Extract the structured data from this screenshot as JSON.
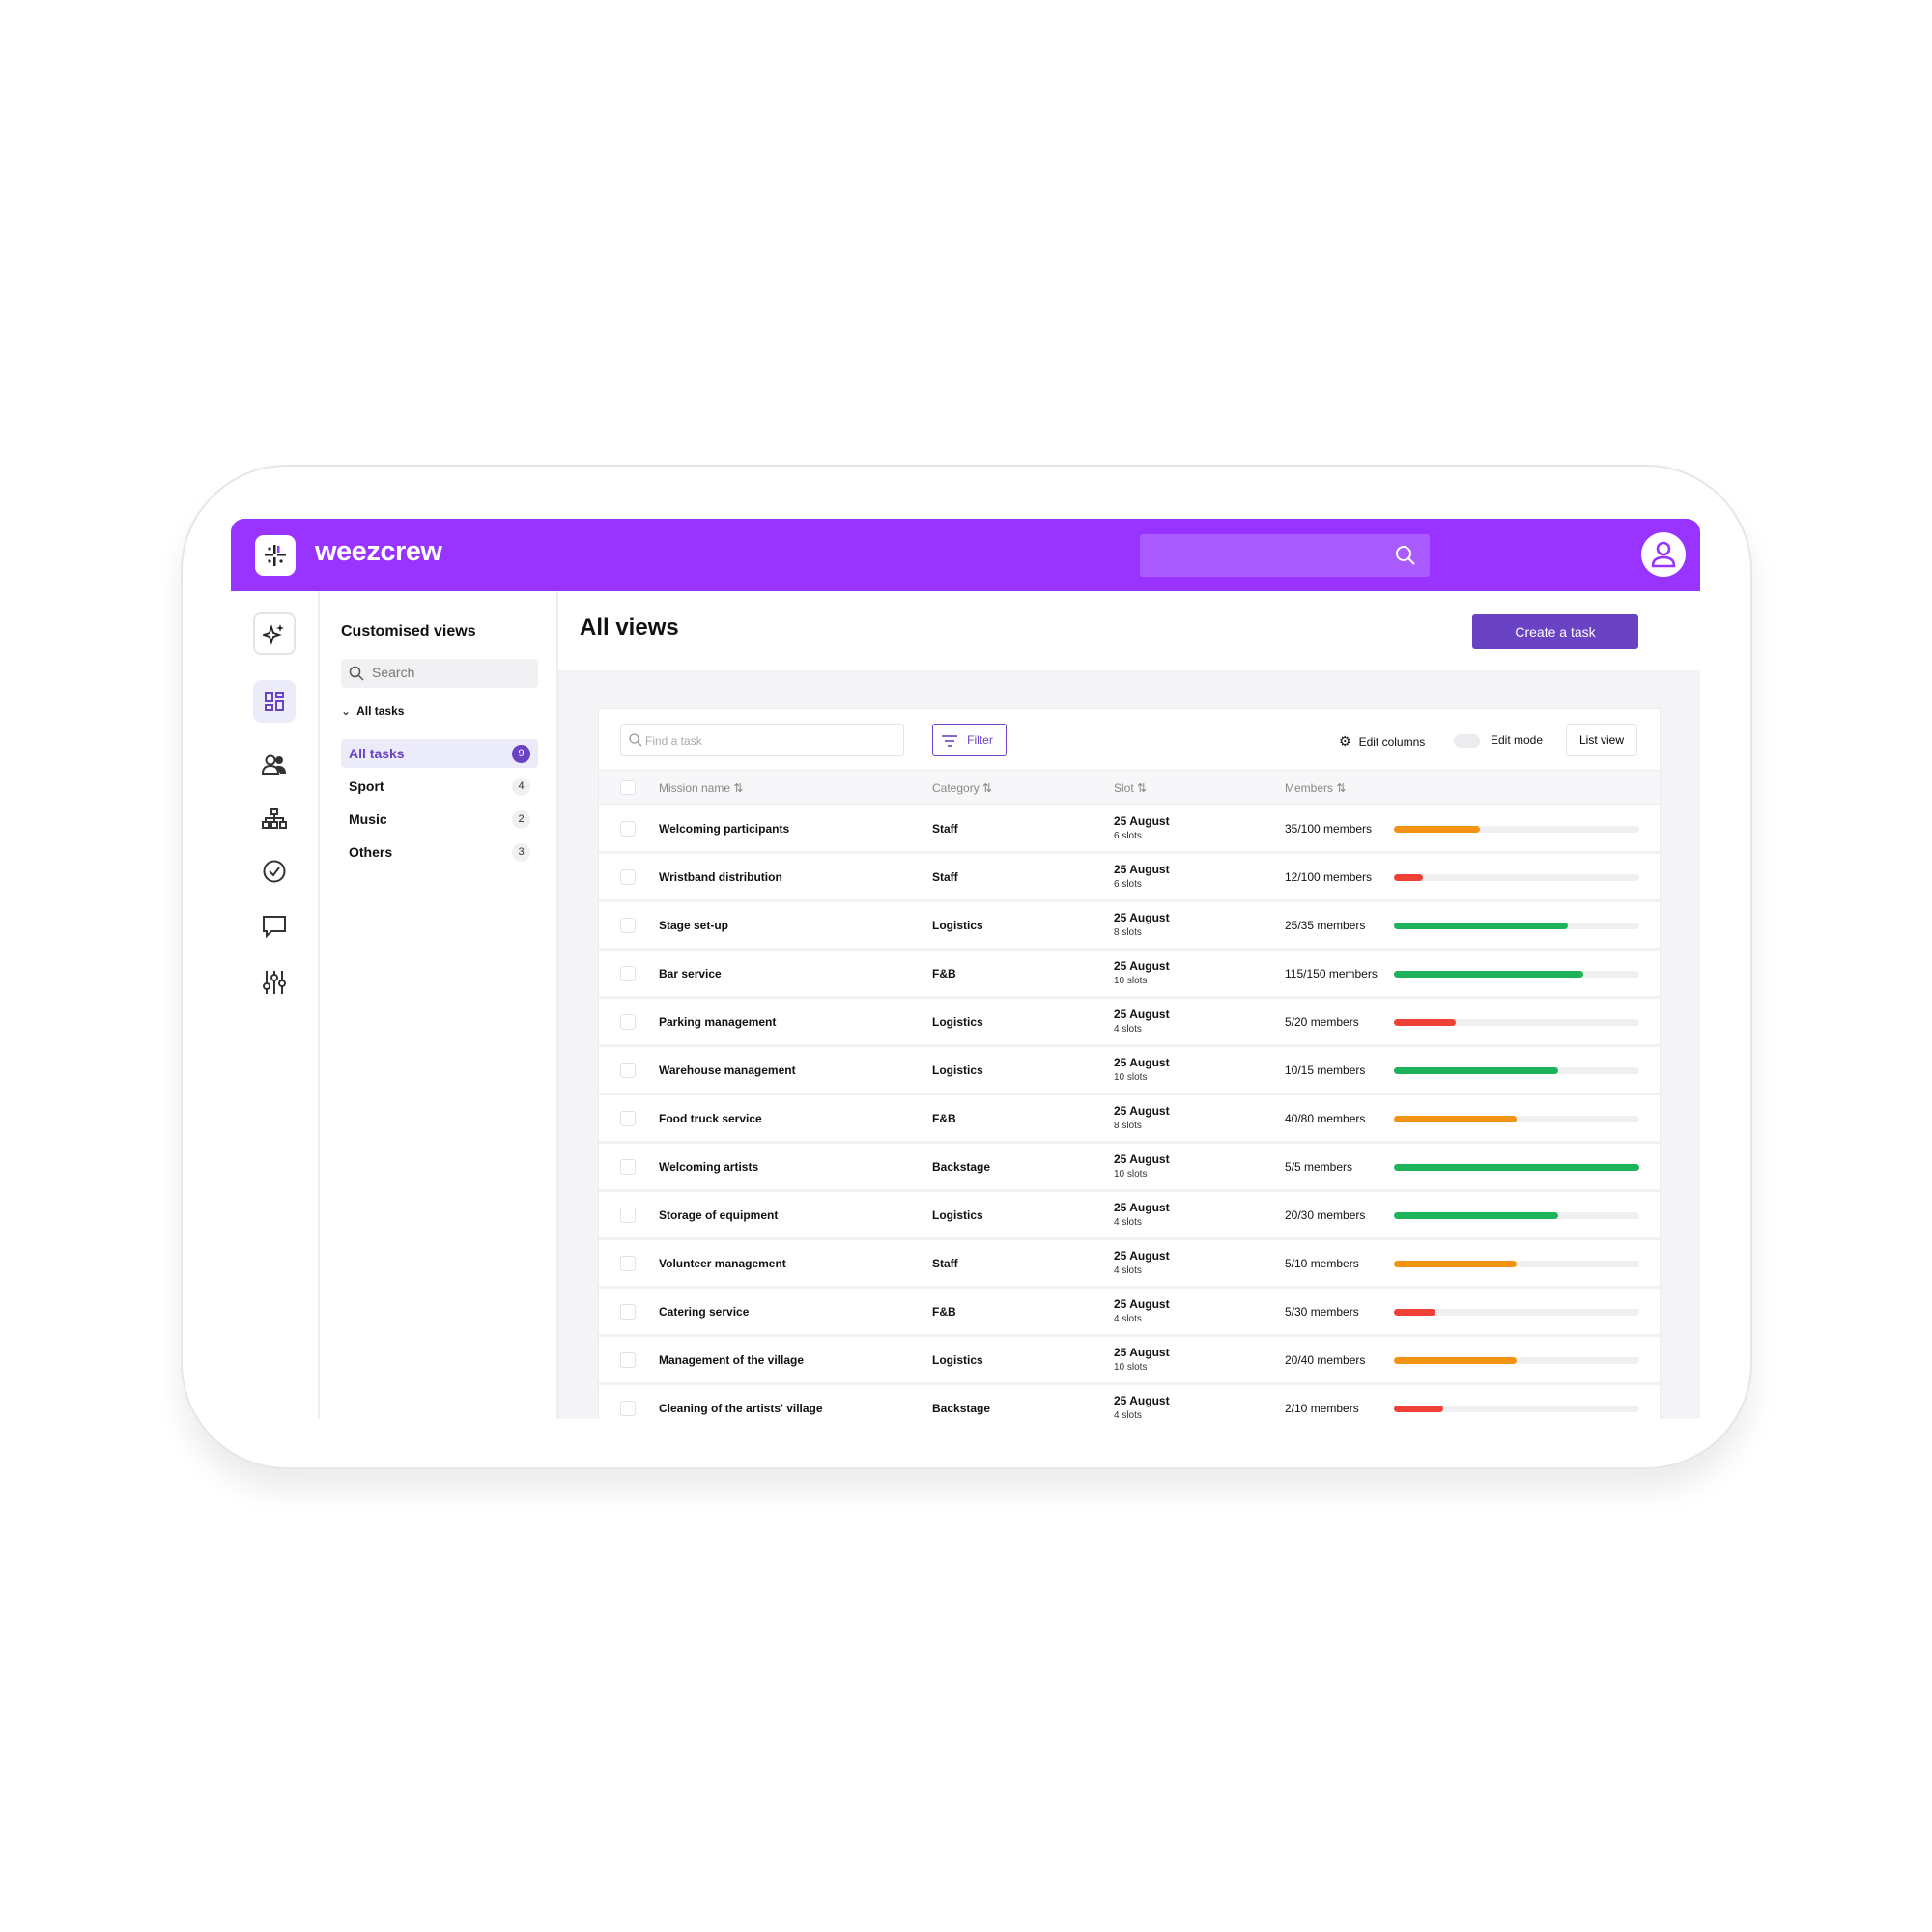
{
  "header": {
    "brand": "weezcrew"
  },
  "sidebar": {
    "title": "Customised views",
    "search_placeholder": "Search",
    "group": "All tasks",
    "items": [
      {
        "label": "All tasks",
        "count": "9",
        "active": true
      },
      {
        "label": "Sport",
        "count": "4"
      },
      {
        "label": "Music",
        "count": "2"
      },
      {
        "label": "Others",
        "count": "3"
      }
    ]
  },
  "main": {
    "title": "All views",
    "create_label": "Create a task",
    "toolbar": {
      "find_placeholder": "Find a task",
      "filter": "Filter",
      "edit_columns": "Edit columns",
      "edit_mode": "Edit mode",
      "list_view": "List view"
    },
    "columns": [
      "Mission name",
      "Category",
      "Slot",
      "Members"
    ],
    "colors": {
      "orange": "#f39313",
      "red": "#ef4136",
      "green": "#1db35a"
    },
    "rows": [
      {
        "name": "Welcoming participants",
        "category": "Staff",
        "date": "25 August",
        "slots": "6 slots",
        "members": "35/100 members",
        "fill": 0.35,
        "color": "orange"
      },
      {
        "name": "Wristband distribution",
        "category": "Staff",
        "date": "25 August",
        "slots": "6 slots",
        "members": "12/100 members",
        "fill": 0.12,
        "color": "red"
      },
      {
        "name": "Stage set-up",
        "category": "Logistics",
        "date": "25 August",
        "slots": "8 slots",
        "members": "25/35 members",
        "fill": 0.71,
        "color": "green"
      },
      {
        "name": "Bar service",
        "category": "F&B",
        "date": "25 August",
        "slots": "10 slots",
        "members": "115/150 members",
        "fill": 0.77,
        "color": "green"
      },
      {
        "name": "Parking management",
        "category": "Logistics",
        "date": "25 August",
        "slots": "4 slots",
        "members": "5/20 members",
        "fill": 0.25,
        "color": "red"
      },
      {
        "name": "Warehouse management",
        "category": "Logistics",
        "date": "25 August",
        "slots": "10 slots",
        "members": "10/15 members",
        "fill": 0.67,
        "color": "green"
      },
      {
        "name": "Food truck service",
        "category": "F&B",
        "date": "25 August",
        "slots": "8 slots",
        "members": "40/80 members",
        "fill": 0.5,
        "color": "orange"
      },
      {
        "name": "Welcoming artists",
        "category": "Backstage",
        "date": "25 August",
        "slots": "10 slots",
        "members": "5/5 members",
        "fill": 1.0,
        "color": "green"
      },
      {
        "name": "Storage of equipment",
        "category": "Logistics",
        "date": "25 August",
        "slots": "4 slots",
        "members": "20/30 members",
        "fill": 0.67,
        "color": "green"
      },
      {
        "name": "Volunteer management",
        "category": "Staff",
        "date": "25 August",
        "slots": "4 slots",
        "members": "5/10 members",
        "fill": 0.5,
        "color": "orange"
      },
      {
        "name": "Catering service",
        "category": "F&B",
        "date": "25 August",
        "slots": "4 slots",
        "members": "5/30 members",
        "fill": 0.17,
        "color": "red"
      },
      {
        "name": "Management of the village",
        "category": "Logistics",
        "date": "25 August",
        "slots": "10 slots",
        "members": "20/40 members",
        "fill": 0.5,
        "color": "orange"
      },
      {
        "name": "Cleaning of the artists' village",
        "category": "Backstage",
        "date": "25 August",
        "slots": "4 slots",
        "members": "2/10 members",
        "fill": 0.2,
        "color": "red"
      }
    ]
  }
}
